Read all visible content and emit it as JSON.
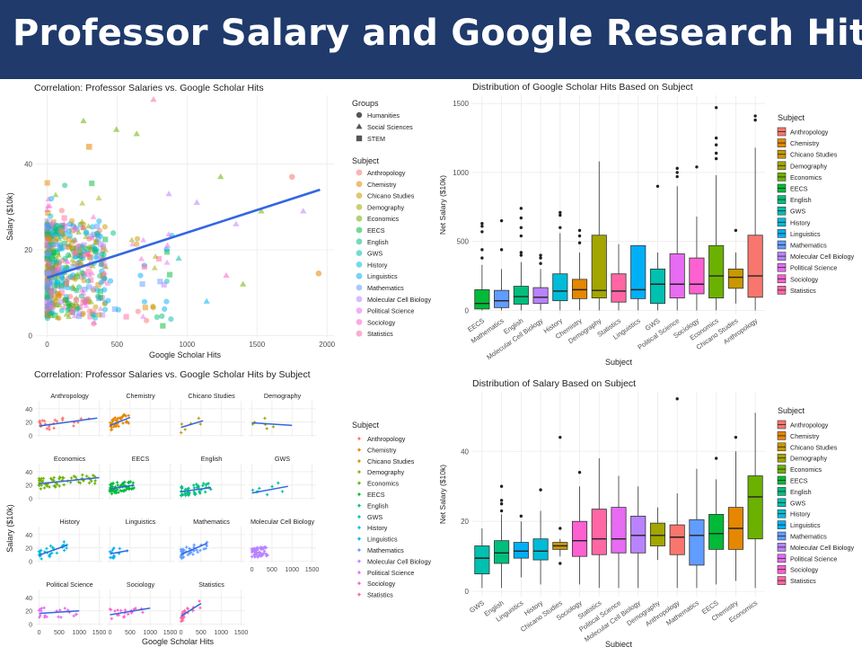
{
  "page": {
    "title": "Professor Salary and Google Research Hits"
  },
  "colors": {
    "banner": "#1f3a6b",
    "fit_line": "#3366e0",
    "subjects": {
      "Anthropology": "#f8766d",
      "Chemistry": "#e58700",
      "Chicano Studies": "#c99800",
      "Demography": "#a3a500",
      "Economics": "#6bb100",
      "EECS": "#00ba38",
      "English": "#00bf7d",
      "GWS": "#00c0af",
      "History": "#00bcd8",
      "Linguistics": "#00b0f6",
      "Mathematics": "#619cff",
      "Molecular Cell Biology": "#b983ff",
      "Political Science": "#e76bf3",
      "Sociology": "#fd61d1",
      "Statistics": "#ff67a4"
    }
  },
  "subjects": [
    "Anthropology",
    "Chemistry",
    "Chicano Studies",
    "Demography",
    "Economics",
    "EECS",
    "English",
    "GWS",
    "History",
    "Linguistics",
    "Mathematics",
    "Molecular Cell Biology",
    "Political Science",
    "Sociology",
    "Statistics"
  ],
  "chart_data": [
    {
      "type": "scatter",
      "title": "Correlation: Professor Salaries vs. Google Scholar Hits",
      "xlabel": "Google Scholar Hits",
      "ylabel": "Salary ($10k)",
      "xlim": [
        -80,
        2050
      ],
      "ylim": [
        -0.5,
        56
      ],
      "xticks": [
        0,
        500,
        1000,
        1500,
        2000
      ],
      "yticks": [
        0,
        20,
        40
      ],
      "grid": true,
      "legend_position": "right",
      "legend_groups_title": "Groups",
      "groups": [
        {
          "name": "Humanities",
          "shape": "circle"
        },
        {
          "name": "Social Sciences",
          "shape": "triangle"
        },
        {
          "name": "STEM",
          "shape": "square"
        }
      ],
      "legend_subject_title": "Subject",
      "fit_line": {
        "x": [
          0,
          1950
        ],
        "y": [
          13.5,
          34
        ]
      },
      "outliers": [
        {
          "x": 760,
          "y": 55,
          "subject": "Statistics",
          "shape": "triangle"
        },
        {
          "x": 260,
          "y": 50,
          "subject": "Economics",
          "shape": "triangle"
        },
        {
          "x": 495,
          "y": 48,
          "subject": "Economics",
          "shape": "triangle"
        },
        {
          "x": 640,
          "y": 47,
          "subject": "Economics",
          "shape": "triangle"
        },
        {
          "x": 300,
          "y": 44,
          "subject": "Chemistry",
          "shape": "square"
        },
        {
          "x": 1240,
          "y": 37,
          "subject": "Economics",
          "shape": "triangle"
        },
        {
          "x": 1750,
          "y": 37,
          "subject": "Anthropology",
          "shape": "circle"
        },
        {
          "x": 1940,
          "y": 14.5,
          "subject": "Chemistry",
          "shape": "circle"
        },
        {
          "x": 1530,
          "y": 29,
          "subject": "Economics",
          "shape": "triangle"
        },
        {
          "x": 1350,
          "y": 26,
          "subject": "Molecular Cell Biology",
          "shape": "triangle"
        },
        {
          "x": 1070,
          "y": 31,
          "subject": "Molecular Cell Biology",
          "shape": "triangle"
        },
        {
          "x": 870,
          "y": 33,
          "subject": "Molecular Cell Biology",
          "shape": "triangle"
        },
        {
          "x": 1830,
          "y": 29,
          "subject": "Molecular Cell Biology",
          "shape": "triangle"
        },
        {
          "x": 1400,
          "y": 12,
          "subject": "Economics",
          "shape": "triangle"
        },
        {
          "x": 1140,
          "y": 8,
          "subject": "Linguistics",
          "shape": "triangle"
        },
        {
          "x": 940,
          "y": 18,
          "subject": "GWS",
          "shape": "triangle"
        },
        {
          "x": 1280,
          "y": 14,
          "subject": "Sociology",
          "shape": "triangle"
        },
        {
          "x": 860,
          "y": 21,
          "subject": "Political Science",
          "shape": "triangle"
        }
      ]
    },
    {
      "type": "box",
      "title": "Distribution of Google Scholar Hits Based on Subject",
      "xlabel": "Subject",
      "ylabel": "Net Salary ($10k)",
      "ylim": [
        -30,
        1560
      ],
      "yticks": [
        0,
        500,
        1000,
        1500
      ],
      "legend_title": "Subject",
      "legend_position": "right",
      "categories": [
        "EECS",
        "Mathematics",
        "English",
        "Molecular Cell Biology",
        "History",
        "Chemistry",
        "Demography",
        "Statistics",
        "Linguistics",
        "GWS",
        "Political Science",
        "Sociology",
        "Economics",
        "Chicano Studies",
        "Anthropology"
      ],
      "boxes": [
        {
          "subject": "EECS",
          "whisker_low": 0,
          "q1": 10,
          "median": 50,
          "q3": 150,
          "whisker_high": 330,
          "outliers": [
            380,
            440,
            570,
            610,
            630
          ]
        },
        {
          "subject": "Mathematics",
          "whisker_low": 0,
          "q1": 20,
          "median": 70,
          "q3": 145,
          "whisker_high": 300,
          "outliers": [
            440,
            650
          ]
        },
        {
          "subject": "English",
          "whisker_low": 0,
          "q1": 45,
          "median": 100,
          "q3": 175,
          "whisker_high": 350,
          "outliers": [
            400,
            420,
            540,
            600,
            670,
            740
          ]
        },
        {
          "subject": "Molecular Cell Biology",
          "whisker_low": 0,
          "q1": 50,
          "median": 95,
          "q3": 165,
          "whisker_high": 300,
          "outliers": [
            340,
            380,
            400
          ]
        },
        {
          "subject": "History",
          "whisker_low": 0,
          "q1": 70,
          "median": 140,
          "q3": 265,
          "whisker_high": 560,
          "outliers": [
            600,
            690,
            710
          ]
        },
        {
          "subject": "Chemistry",
          "whisker_low": 0,
          "q1": 85,
          "median": 150,
          "q3": 225,
          "whisker_high": 420,
          "outliers": [
            490,
            540,
            580
          ]
        },
        {
          "subject": "Demography",
          "whisker_low": 0,
          "q1": 90,
          "median": 145,
          "q3": 545,
          "whisker_high": 1080,
          "outliers": []
        },
        {
          "subject": "Statistics",
          "whisker_low": 0,
          "q1": 60,
          "median": 140,
          "q3": 265,
          "whisker_high": 480,
          "outliers": []
        },
        {
          "subject": "Linguistics",
          "whisker_low": 0,
          "q1": 85,
          "median": 150,
          "q3": 470,
          "whisker_high": 470,
          "outliers": []
        },
        {
          "subject": "GWS",
          "whisker_low": 0,
          "q1": 50,
          "median": 190,
          "q3": 300,
          "whisker_high": 420,
          "outliers": [
            900
          ]
        },
        {
          "subject": "Political Science",
          "whisker_low": 0,
          "q1": 90,
          "median": 190,
          "q3": 410,
          "whisker_high": 900,
          "outliers": [
            970,
            1000,
            1030
          ]
        },
        {
          "subject": "Sociology",
          "whisker_low": 0,
          "q1": 120,
          "median": 190,
          "q3": 380,
          "whisker_high": 680,
          "outliers": [
            1040
          ]
        },
        {
          "subject": "Economics",
          "whisker_low": 0,
          "q1": 90,
          "median": 250,
          "q3": 470,
          "whisker_high": 980,
          "outliers": [
            1100,
            1140,
            1200,
            1250,
            1470
          ]
        },
        {
          "subject": "Chicano Studies",
          "whisker_low": 50,
          "q1": 160,
          "median": 240,
          "q3": 300,
          "whisker_high": 420,
          "outliers": [
            580
          ]
        },
        {
          "subject": "Anthropology",
          "whisker_low": 0,
          "q1": 95,
          "median": 250,
          "q3": 545,
          "whisker_high": 1180,
          "outliers": [
            1380,
            1410
          ]
        }
      ]
    },
    {
      "type": "scatter-facets",
      "title": "Correlation: Professor Salaries vs. Google Scholar Hits by Subject",
      "xlabel": "Google Scholar Hits",
      "ylabel": "Salary ($10k)",
      "xlim": [
        -80,
        1600
      ],
      "ylim": [
        -2,
        52
      ],
      "xticks": [
        0,
        500,
        1000,
        1500
      ],
      "yticks": [
        0,
        20,
        40
      ],
      "legend_title": "Subject",
      "legend_position": "right",
      "facets": [
        {
          "subject": "Anthropology",
          "fit": [
            [
              0,
              14
            ],
            [
              1450,
              26
            ]
          ],
          "n": 24,
          "xmax": 1300
        },
        {
          "subject": "Chemistry",
          "fit": [
            [
              0,
              15
            ],
            [
              500,
              27
            ]
          ],
          "n": 40,
          "xmax": 500
        },
        {
          "subject": "Chicano Studies",
          "fit": [
            [
              0,
              12
            ],
            [
              550,
              22
            ]
          ],
          "n": 6,
          "xmax": 500
        },
        {
          "subject": "Demography",
          "fit": [
            [
              0,
              19
            ],
            [
              1000,
              15
            ]
          ],
          "n": 6,
          "xmax": 1000
        },
        {
          "subject": "Economics",
          "fit": [
            [
              0,
              22
            ],
            [
              1500,
              31
            ]
          ],
          "n": 60,
          "xmax": 1450
        },
        {
          "subject": "EECS",
          "fit": [
            [
              0,
              14
            ],
            [
              600,
              20
            ]
          ],
          "n": 70,
          "xmax": 600
        },
        {
          "subject": "English",
          "fit": [
            [
              0,
              10
            ],
            [
              750,
              16
            ]
          ],
          "n": 50,
          "xmax": 750
        },
        {
          "subject": "GWS",
          "fit": [
            [
              0,
              8
            ],
            [
              900,
              18
            ]
          ],
          "n": 8,
          "xmax": 900
        },
        {
          "subject": "History",
          "fit": [
            [
              0,
              9
            ],
            [
              700,
              24
            ]
          ],
          "n": 30,
          "xmax": 700
        },
        {
          "subject": "Linguistics",
          "fit": [
            [
              0,
              11
            ],
            [
              450,
              16
            ]
          ],
          "n": 12,
          "xmax": 450
        },
        {
          "subject": "Mathematics",
          "fit": [
            [
              0,
              10
            ],
            [
              650,
              27
            ]
          ],
          "n": 40,
          "xmax": 650
        },
        {
          "subject": "Molecular Cell Biology",
          "fit": null,
          "n": 60,
          "xmax": 400
        },
        {
          "subject": "Political Science",
          "fit": [
            [
              0,
              16
            ],
            [
              1000,
              20
            ]
          ],
          "n": 20,
          "xmax": 1000
        },
        {
          "subject": "Sociology",
          "fit": [
            [
              0,
              14
            ],
            [
              1000,
              24
            ]
          ],
          "n": 20,
          "xmax": 1000
        },
        {
          "subject": "Statistics",
          "fit": [
            [
              0,
              12
            ],
            [
              500,
              31
            ]
          ],
          "n": 24,
          "xmax": 500
        }
      ]
    },
    {
      "type": "box",
      "title": "Distribution of Salary Based on Subject",
      "xlabel": "Subject",
      "ylabel": "Net Salary ($10k)",
      "ylim": [
        -1.5,
        57
      ],
      "yticks": [
        0,
        20,
        40
      ],
      "legend_title": "Subject",
      "legend_position": "right",
      "categories": [
        "GWS",
        "English",
        "Linguistics",
        "History",
        "Chicano Studies",
        "Sociology",
        "Statistics",
        "Political Science",
        "Molecular Cell Biology",
        "Demography",
        "Anthropology",
        "Mathematics",
        "EECS",
        "Chemistry",
        "Economics"
      ],
      "boxes": [
        {
          "subject": "GWS",
          "whisker_low": 1,
          "q1": 5,
          "median": 9.5,
          "q3": 13,
          "whisker_high": 18,
          "outliers": []
        },
        {
          "subject": "English",
          "whisker_low": 1,
          "q1": 8,
          "median": 11,
          "q3": 14.5,
          "whisker_high": 22,
          "outliers": [
            23,
            25,
            26,
            30
          ]
        },
        {
          "subject": "Linguistics",
          "whisker_low": 4,
          "q1": 9.5,
          "median": 11.5,
          "q3": 14,
          "whisker_high": 20,
          "outliers": [
            21.5
          ]
        },
        {
          "subject": "History",
          "whisker_low": 2,
          "q1": 9,
          "median": 11.5,
          "q3": 15,
          "whisker_high": 23,
          "outliers": [
            29
          ]
        },
        {
          "subject": "Chicano Studies",
          "whisker_low": 10,
          "q1": 12,
          "median": 13,
          "q3": 14,
          "whisker_high": 15,
          "outliers": [
            8,
            18,
            44
          ]
        },
        {
          "subject": "Sociology",
          "whisker_low": 2,
          "q1": 10,
          "median": 14.5,
          "q3": 20,
          "whisker_high": 30,
          "outliers": [
            34
          ]
        },
        {
          "subject": "Statistics",
          "whisker_low": 1,
          "q1": 10.5,
          "median": 15,
          "q3": 23.5,
          "whisker_high": 38,
          "outliers": []
        },
        {
          "subject": "Political Science",
          "whisker_low": 1,
          "q1": 11,
          "median": 15,
          "q3": 24,
          "whisker_high": 33,
          "outliers": []
        },
        {
          "subject": "Molecular Cell Biology",
          "whisker_low": 1,
          "q1": 11,
          "median": 16,
          "q3": 21.5,
          "whisker_high": 30,
          "outliers": []
        },
        {
          "subject": "Demography",
          "whisker_low": 9,
          "q1": 13,
          "median": 16,
          "q3": 19.5,
          "whisker_high": 24,
          "outliers": []
        },
        {
          "subject": "Anthropology",
          "whisker_low": 1,
          "q1": 10.5,
          "median": 15.5,
          "q3": 19,
          "whisker_high": 28,
          "outliers": [
            55
          ]
        },
        {
          "subject": "Mathematics",
          "whisker_low": 1,
          "q1": 7.5,
          "median": 16,
          "q3": 20.5,
          "whisker_high": 35,
          "outliers": []
        },
        {
          "subject": "EECS",
          "whisker_low": 2,
          "q1": 12,
          "median": 16.5,
          "q3": 22,
          "whisker_high": 32,
          "outliers": [
            38
          ]
        },
        {
          "subject": "Chemistry",
          "whisker_low": 3,
          "q1": 12,
          "median": 18,
          "q3": 24,
          "whisker_high": 40,
          "outliers": [
            44
          ]
        },
        {
          "subject": "Economics",
          "whisker_low": 1,
          "q1": 15,
          "median": 27,
          "q3": 33,
          "whisker_high": 51,
          "outliers": []
        }
      ]
    }
  ]
}
